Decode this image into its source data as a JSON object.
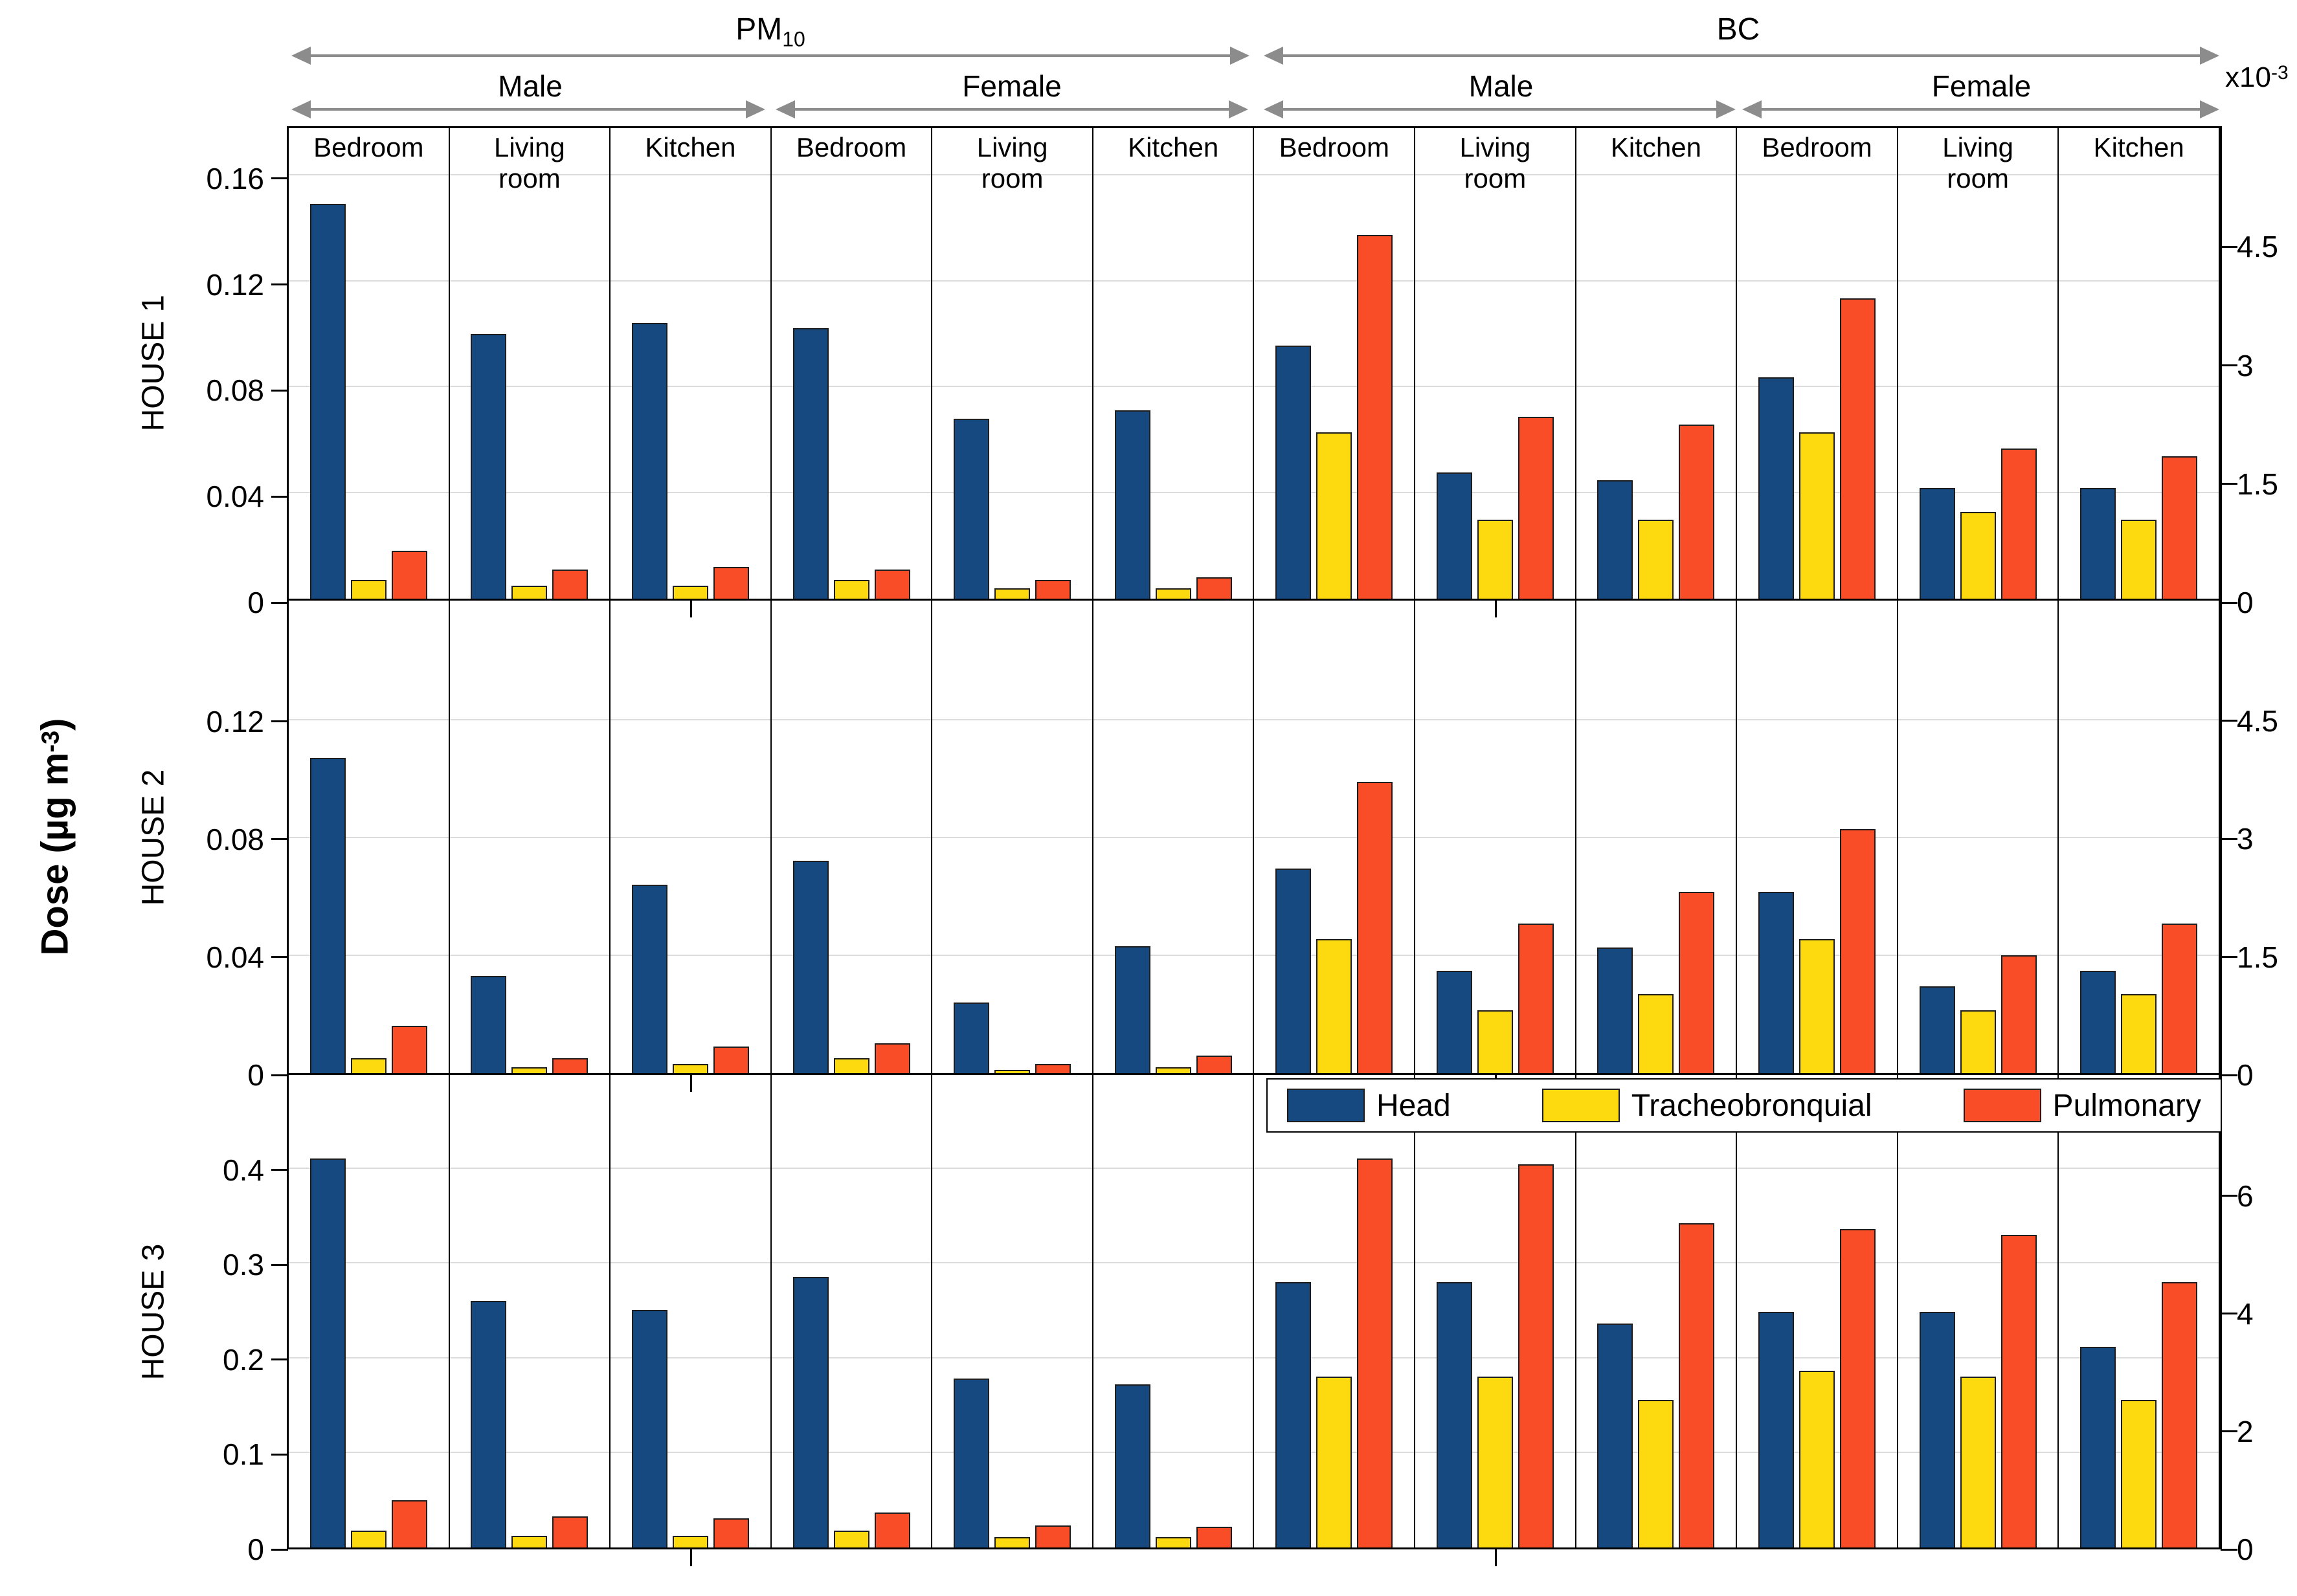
{
  "header": {
    "pm10_main": "PM",
    "pm10_sub": "10",
    "bc": "BC",
    "male": "Male",
    "female": "Female",
    "right_scale_main": "x10",
    "right_scale_sup": "-3"
  },
  "ylabel": {
    "pre": "Dose (µg m",
    "sup": "-3",
    "post": ")"
  },
  "legend": [
    {
      "label": "Head",
      "color": "#15497f"
    },
    {
      "label": "Tracheobronquial",
      "color": "#fdd90f"
    },
    {
      "label": "Pulmonary",
      "color": "#f94d27"
    }
  ],
  "chart_data": {
    "type": "bar",
    "title": "",
    "xlabel": "",
    "ylabel": "Dose (µg m⁻³)",
    "right_axis_scale_note": "BC values are in 1e-3 µg m⁻³ (right axis, x10^-3)",
    "grid": true,
    "legend_position": "between HOUSE 2 and HOUSE 3, over BC half",
    "series": [
      "Head",
      "Tracheobronquial",
      "Pulmonary"
    ],
    "colors": {
      "Head": "#15497f",
      "Tracheobronquial": "#fdd90f",
      "Pulmonary": "#f94d27"
    },
    "pollutants": [
      "PM10",
      "BC"
    ],
    "genders": [
      "Male",
      "Female"
    ],
    "rooms": [
      "Bedroom",
      "Living room",
      "Kitchen"
    ],
    "rows": [
      {
        "house": "HOUSE 1",
        "left_ticks": [
          "0.16",
          "0.12",
          "0.08",
          "0.04",
          "0"
        ],
        "right_ticks": [
          "4.5",
          "3",
          "1.5",
          "0"
        ],
        "left_axis_max": 0.179,
        "right_axis_max": 6.0,
        "values": {
          "PM10": {
            "Male": {
              "Bedroom": [
                0.149,
                0.007,
                0.018
              ],
              "Living room": [
                0.1,
                0.005,
                0.011
              ],
              "Kitchen": [
                0.104,
                0.005,
                0.012
              ]
            },
            "Female": {
              "Bedroom": [
                0.102,
                0.007,
                0.011
              ],
              "Living room": [
                0.068,
                0.004,
                0.007
              ],
              "Kitchen": [
                0.071,
                0.004,
                0.008
              ]
            }
          },
          "BC": {
            "Male": {
              "Bedroom": [
                3.2,
                2.1,
                4.6
              ],
              "Living room": [
                1.6,
                1.0,
                2.3
              ],
              "Kitchen": [
                1.5,
                1.0,
                2.2
              ]
            },
            "Female": {
              "Bedroom": [
                2.8,
                2.1,
                3.8
              ],
              "Living room": [
                1.4,
                1.1,
                1.9
              ],
              "Kitchen": [
                1.4,
                1.0,
                1.8
              ]
            }
          }
        }
      },
      {
        "house": "HOUSE 2",
        "left_ticks": [
          "0.12",
          "0.08",
          "0.04",
          "0"
        ],
        "right_ticks": [
          "4.5",
          "3",
          "1.5",
          "0"
        ],
        "left_axis_max": 0.161,
        "right_axis_max": 6.03,
        "values": {
          "PM10": {
            "Male": {
              "Bedroom": [
                0.107,
                0.005,
                0.016
              ],
              "Living room": [
                0.033,
                0.002,
                0.005
              ],
              "Kitchen": [
                0.064,
                0.003,
                0.009
              ]
            },
            "Female": {
              "Bedroom": [
                0.072,
                0.005,
                0.01
              ],
              "Living room": [
                0.024,
                0.001,
                0.003
              ],
              "Kitchen": [
                0.043,
                0.002,
                0.006
              ]
            }
          },
          "BC": {
            "Male": {
              "Bedroom": [
                2.6,
                1.7,
                3.7
              ],
              "Living room": [
                1.3,
                0.8,
                1.9
              ],
              "Kitchen": [
                1.6,
                1.0,
                2.3
              ]
            },
            "Female": {
              "Bedroom": [
                2.3,
                1.7,
                3.1
              ],
              "Living room": [
                1.1,
                0.8,
                1.5
              ],
              "Kitchen": [
                1.3,
                1.0,
                1.9
              ]
            }
          }
        }
      },
      {
        "house": "HOUSE 3",
        "left_ticks": [
          "0.4",
          "0.3",
          "0.2",
          "0.1",
          "0"
        ],
        "right_ticks": [
          "6",
          "4",
          "2",
          "0"
        ],
        "left_axis_max": 0.5,
        "right_axis_max": 8.05,
        "values": {
          "PM10": {
            "Male": {
              "Bedroom": [
                0.41,
                0.018,
                0.05
              ],
              "Living room": [
                0.26,
                0.012,
                0.033
              ],
              "Kitchen": [
                0.25,
                0.012,
                0.031
              ]
            },
            "Female": {
              "Bedroom": [
                0.285,
                0.018,
                0.037
              ],
              "Living room": [
                0.178,
                0.011,
                0.023
              ],
              "Kitchen": [
                0.172,
                0.011,
                0.022
              ]
            }
          },
          "BC": {
            "Male": {
              "Bedroom": [
                4.5,
                2.9,
                6.6
              ],
              "Living room": [
                4.5,
                2.9,
                6.5
              ],
              "Kitchen": [
                3.8,
                2.5,
                5.5
              ]
            },
            "Female": {
              "Bedroom": [
                4.0,
                3.0,
                5.4
              ],
              "Living room": [
                4.0,
                2.9,
                5.3
              ],
              "Kitchen": [
                3.4,
                2.5,
                4.5
              ]
            }
          }
        }
      }
    ]
  }
}
